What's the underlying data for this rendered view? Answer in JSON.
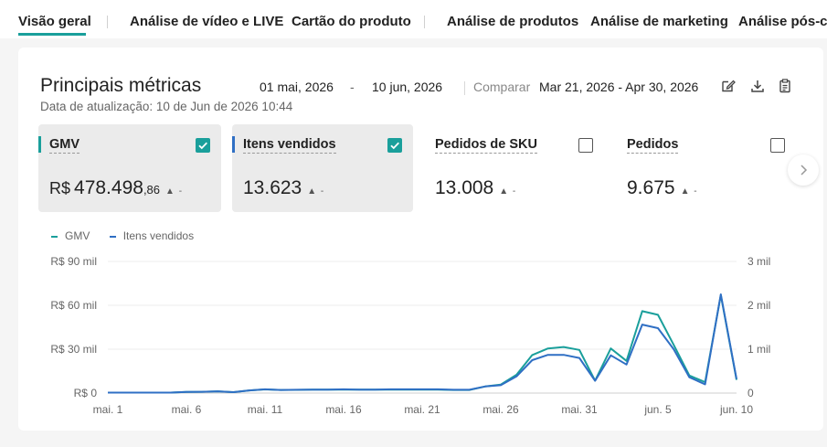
{
  "tabs": [
    {
      "label": "Visão geral",
      "active": true
    },
    {
      "label": "Análise de vídeo e LIVE"
    },
    {
      "label": "Cartão do produto"
    },
    {
      "label": "Análise de produtos"
    },
    {
      "label": "Análise de marketing"
    },
    {
      "label": "Análise pós-co"
    }
  ],
  "header": {
    "title": "Principais métricas",
    "updated": "Data de atualização: 10 de Jun de 2026 10:44",
    "date_start": "01 mai, 2026",
    "date_dash": "-",
    "date_end": "10 jun, 2026",
    "compare_label": "Comparar",
    "compare_range": "Mar 21, 2026 - Apr 30, 2026",
    "icons": [
      "edit-icon",
      "download-icon",
      "clipboard-icon"
    ]
  },
  "metrics": [
    {
      "label": "GMV",
      "currency": "R$",
      "value": "478.498",
      "cents": ",86",
      "trend": "▲ -",
      "checked": true,
      "color": "#1a9f9b"
    },
    {
      "label": "Itens vendidos",
      "value": "13.623",
      "trend": "▲ -",
      "checked": true,
      "color": "#2f6fc4"
    },
    {
      "label": "Pedidos de SKU",
      "value": "13.008",
      "trend": "▲ -",
      "checked": false
    },
    {
      "label": "Pedidos",
      "value": "9.675",
      "trend": "▲ -",
      "checked": false
    }
  ],
  "colors": {
    "accent": "#1a9f9b",
    "gmv": "#1a9f9b",
    "items": "#2f6fc4"
  },
  "chart_data": {
    "type": "line",
    "x": [
      "mai. 1",
      "mai. 2",
      "mai. 3",
      "mai. 4",
      "mai. 5",
      "mai. 6",
      "mai. 7",
      "mai. 8",
      "mai. 9",
      "mai. 10",
      "mai. 11",
      "mai. 12",
      "mai. 13",
      "mai. 14",
      "mai. 15",
      "mai. 16",
      "mai. 17",
      "mai. 18",
      "mai. 19",
      "mai. 20",
      "mai. 21",
      "mai. 22",
      "mai. 23",
      "mai. 24",
      "mai. 25",
      "mai. 26",
      "mai. 27",
      "mai. 28",
      "mai. 29",
      "mai. 30",
      "mai. 31",
      "jun. 1",
      "jun. 2",
      "jun. 3",
      "jun. 4",
      "jun. 5",
      "jun. 6",
      "jun. 7",
      "jun. 8",
      "jun. 9",
      "jun. 10"
    ],
    "x_tick_labels": [
      "mai. 1",
      "mai. 6",
      "mai. 11",
      "mai. 16",
      "mai. 21",
      "mai. 26",
      "mai. 31",
      "jun. 5",
      "jun. 10"
    ],
    "series": [
      {
        "name": "GMV",
        "axis": "left",
        "color": "#1a9f9b",
        "values": [
          300,
          300,
          300,
          300,
          300,
          800,
          900,
          1200,
          600,
          1800,
          2500,
          2100,
          2200,
          2300,
          2300,
          2400,
          2300,
          2300,
          2400,
          2400,
          2400,
          2400,
          2100,
          2100,
          4500,
          5800,
          12500,
          26000,
          30500,
          31500,
          29500,
          8500,
          30500,
          22000,
          56000,
          53500,
          33000,
          12000,
          7500,
          67000,
          9000
        ]
      },
      {
        "name": "Itens vendidos",
        "axis": "right",
        "color": "#2f6fc4",
        "values": [
          10,
          10,
          10,
          10,
          10,
          25,
          30,
          40,
          20,
          60,
          85,
          70,
          75,
          80,
          80,
          85,
          80,
          80,
          85,
          85,
          85,
          85,
          75,
          75,
          150,
          180,
          380,
          750,
          870,
          870,
          800,
          280,
          860,
          650,
          1560,
          1480,
          1000,
          360,
          200,
          2250,
          320
        ]
      }
    ],
    "y_left": {
      "ticks": [
        "R$ 0",
        "R$ 30 mil",
        "R$ 60 mil",
        "R$ 90 mil"
      ],
      "range": [
        0,
        90000
      ]
    },
    "y_right": {
      "ticks": [
        "0",
        "1 mil",
        "2 mil",
        "3 mil"
      ],
      "range": [
        0,
        3000
      ]
    },
    "legend": [
      "GMV",
      "Itens vendidos"
    ],
    "grid": true,
    "legend_position": "top-left"
  }
}
